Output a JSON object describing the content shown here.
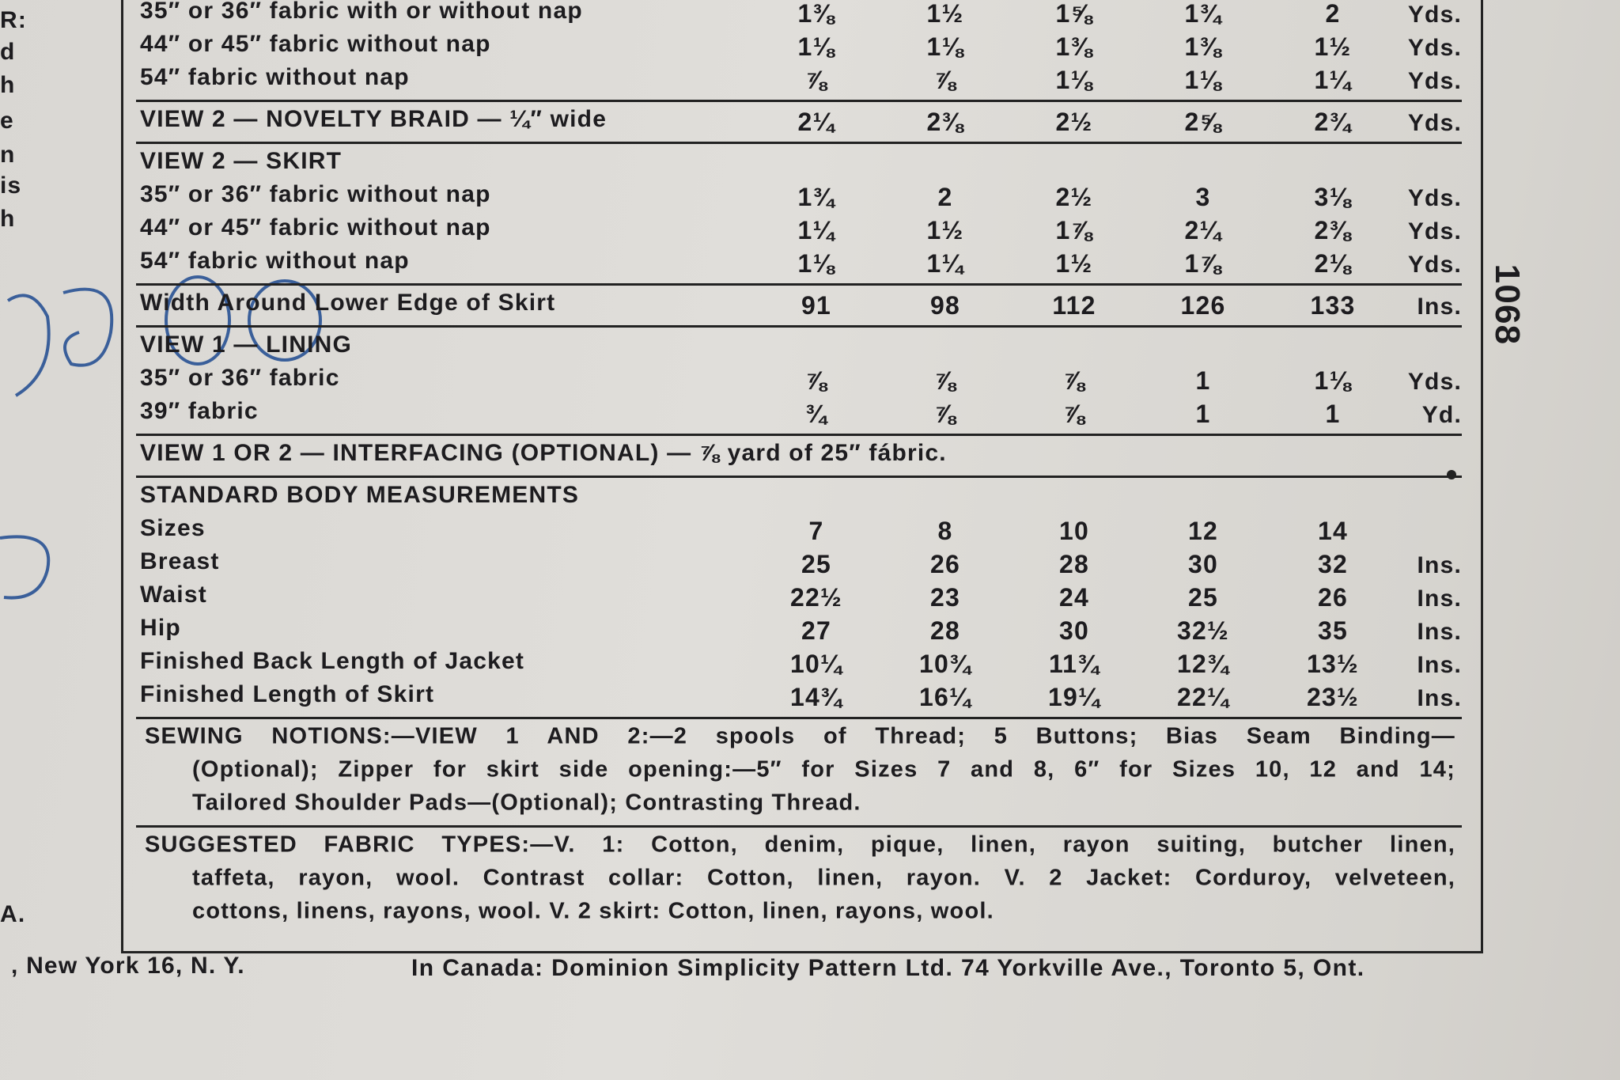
{
  "margin_fragments": [
    "R:",
    "d",
    "h",
    "e",
    "n",
    "is",
    "h",
    "A."
  ],
  "sections": [
    {
      "rows": [
        {
          "label": "35″ or 36″ fabric with or without nap",
          "values": [
            "1⅜",
            "1½",
            "1⅝",
            "1¾",
            "2"
          ],
          "unit": "Yds."
        },
        {
          "label": "44″ or 45″ fabric without nap",
          "values": [
            "1⅛",
            "1⅛",
            "1⅜",
            "1⅜",
            "1½"
          ],
          "unit": "Yds."
        },
        {
          "label": "54″ fabric without nap",
          "values": [
            "⅞",
            "⅞",
            "1⅛",
            "1⅛",
            "1¼"
          ],
          "unit": "Yds."
        }
      ]
    },
    {
      "rows": [
        {
          "label": "VIEW 2 — NOVELTY BRAID — ¼″ wide",
          "values": [
            "2¼",
            "2⅜",
            "2½",
            "2⅝",
            "2¾"
          ],
          "unit": "Yds."
        }
      ]
    },
    {
      "heading": "VIEW 2 — SKIRT",
      "rows": [
        {
          "label": "35″ or 36″ fabric without nap",
          "values": [
            "1¾",
            "2",
            "2½",
            "3",
            "3⅛"
          ],
          "unit": "Yds."
        },
        {
          "label": "44″ or 45″ fabric without nap",
          "values": [
            "1¼",
            "1½",
            "1⅞",
            "2¼",
            "2⅜"
          ],
          "unit": "Yds."
        },
        {
          "label": "54″ fabric without nap",
          "values": [
            "1⅛",
            "1¼",
            "1½",
            "1⅞",
            "2⅛"
          ],
          "unit": "Yds."
        }
      ]
    },
    {
      "rows": [
        {
          "label": "Width Around Lower Edge of Skirt",
          "values": [
            "91",
            "98",
            "112",
            "126",
            "133"
          ],
          "unit": "Ins."
        }
      ]
    },
    {
      "heading": "VIEW 1 — LINING",
      "rows": [
        {
          "label": "35″ or 36″ fabric",
          "values": [
            "⅞",
            "⅞",
            "⅞",
            "1",
            "1⅛"
          ],
          "unit": "Yds."
        },
        {
          "label": "39″ fabric",
          "values": [
            "¾",
            "⅞",
            "⅞",
            "1",
            "1"
          ],
          "unit": "Yd."
        }
      ]
    },
    {
      "heading": "VIEW 1 OR 2 — INTERFACING (OPTIONAL) — ⅞ yard of 25″ fábric."
    },
    {
      "heading": "STANDARD BODY MEASUREMENTS",
      "rows": [
        {
          "label": "Sizes",
          "values": [
            "7",
            "8",
            "10",
            "12",
            "14"
          ]
        },
        {
          "label": "Breast",
          "values": [
            "25",
            "26",
            "28",
            "30",
            "32"
          ],
          "unit": "Ins."
        },
        {
          "label": "Waist",
          "values": [
            "22½",
            "23",
            "24",
            "25",
            "26"
          ],
          "unit": "Ins."
        },
        {
          "label": "Hip",
          "values": [
            "27",
            "28",
            "30",
            "32½",
            "35"
          ],
          "unit": "Ins."
        },
        {
          "label": "Finished Back Length of Jacket",
          "values": [
            "10¼",
            "10¾",
            "11¾",
            "12¾",
            "13½"
          ],
          "unit": "Ins."
        },
        {
          "label": "Finished Length of Skirt",
          "values": [
            "14¾",
            "16¼",
            "19¼",
            "22¼",
            "23½"
          ],
          "unit": "Ins."
        }
      ]
    },
    {
      "lines": [
        "SEWING NOTIONS:—VIEW 1 AND 2:—2 spools of Thread; 5 Buttons; Bias Seam Binding—",
        "(Optional); Zipper for skirt side opening:—5″ for Sizes 7 and 8, 6″ for Sizes 10, 12 and 14;",
        "Tailored Shoulder Pads—(Optional); Contrasting Thread."
      ]
    },
    {
      "lines": [
        "SUGGESTED FABRIC TYPES:—V. 1: Cotton, denim, pique, linen, rayon suiting, butcher linen,",
        "taffeta, rayon, wool. Contrast collar: Cotton, linen, rayon. V. 2 Jacket: Corduroy, velveteen,",
        "cottons, linens, rayons, wool. V. 2 skirt: Cotton, linen, rayons, wool."
      ]
    }
  ],
  "side_number": "1068",
  "footer": {
    "left": ", New York 16, N. Y.",
    "right": "In Canada: Dominion Simplicity Pattern Ltd. 74 Yorkville Ave., Toronto 5, Ont."
  }
}
